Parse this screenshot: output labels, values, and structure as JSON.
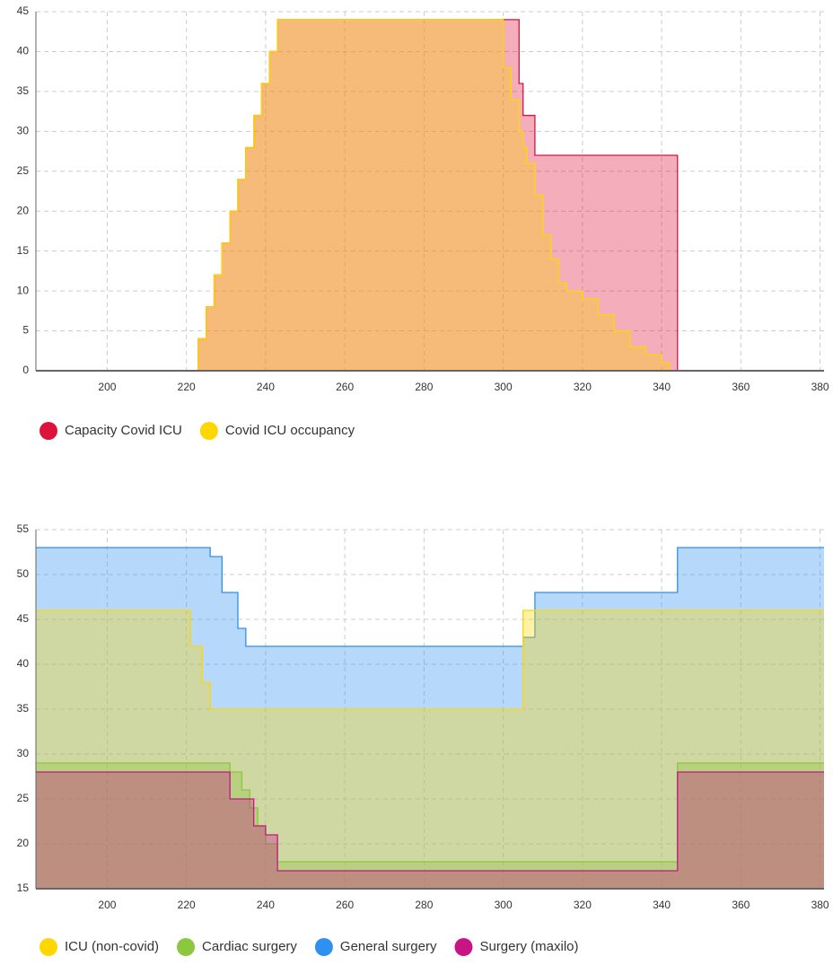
{
  "chart_data": [
    {
      "type": "area",
      "interpolation": "step",
      "grid": true,
      "legend": "bottom-left",
      "xlim": [
        182,
        381
      ],
      "xticks": [
        200,
        220,
        240,
        260,
        280,
        300,
        320,
        340,
        360,
        380
      ],
      "ylim": [
        0,
        45
      ],
      "yticks": [
        0,
        5,
        10,
        15,
        20,
        25,
        30,
        35,
        40,
        45
      ],
      "x": [
        182,
        223,
        225,
        227,
        229,
        231,
        233,
        235,
        237,
        239,
        241,
        243,
        245,
        297,
        300,
        302,
        304,
        305,
        306,
        308,
        310,
        312,
        314,
        316,
        318,
        320,
        324,
        328,
        332,
        336,
        340,
        342,
        344,
        381
      ],
      "series": [
        {
          "name": "Capacity Covid ICU",
          "color": "#dc143c",
          "values": [
            0,
            4,
            8,
            12,
            16,
            20,
            24,
            28,
            32,
            36,
            40,
            44,
            44,
            44,
            44,
            44,
            36,
            32,
            32,
            27,
            27,
            27,
            27,
            27,
            27,
            27,
            27,
            27,
            27,
            27,
            27,
            27,
            0,
            0
          ]
        },
        {
          "name": "Covid ICU occupancy",
          "color": "#ffd700",
          "values": [
            0,
            4,
            8,
            12,
            16,
            20,
            24,
            28,
            32,
            36,
            40,
            44,
            44,
            44,
            38,
            34,
            30,
            28,
            26,
            22,
            17,
            14,
            11,
            10,
            10,
            9,
            7,
            5,
            3,
            2,
            1,
            0,
            0,
            0
          ]
        }
      ]
    },
    {
      "type": "area",
      "interpolation": "step",
      "grid": true,
      "legend": "bottom-left",
      "xlim": [
        182,
        381
      ],
      "xticks": [
        200,
        220,
        240,
        260,
        280,
        300,
        320,
        340,
        360,
        380
      ],
      "ylim": [
        15,
        55
      ],
      "yticks": [
        15,
        20,
        25,
        30,
        35,
        40,
        45,
        50,
        55
      ],
      "x": [
        182,
        221,
        222,
        224,
        226,
        227,
        229,
        231,
        233,
        234,
        235,
        236,
        237,
        238,
        240,
        243,
        304,
        305,
        308,
        344,
        381
      ],
      "series": [
        {
          "name": "ICU (non-covid)",
          "color": "#ffd700",
          "values": [
            46,
            42,
            42,
            38,
            35,
            35,
            35,
            35,
            35,
            35,
            35,
            35,
            35,
            35,
            35,
            35,
            35,
            46,
            46,
            46,
            46
          ]
        },
        {
          "name": "Cardiac surgery",
          "color": "#8dc63f",
          "values": [
            29,
            29,
            29,
            29,
            29,
            29,
            29,
            28,
            28,
            26,
            26,
            24,
            24,
            22,
            20,
            18,
            18,
            18,
            18,
            29,
            29
          ]
        },
        {
          "name": "General surgery",
          "color": "#2e90f0",
          "values": [
            53,
            53,
            53,
            53,
            52,
            52,
            48,
            48,
            44,
            44,
            42,
            42,
            42,
            42,
            42,
            42,
            42,
            43,
            48,
            53,
            53
          ]
        },
        {
          "name": "Surgery (maxilo)",
          "color": "#c71585",
          "values": [
            28,
            28,
            28,
            28,
            28,
            28,
            28,
            25,
            25,
            25,
            25,
            25,
            22,
            22,
            21,
            17,
            17,
            17,
            17,
            28,
            28
          ]
        }
      ]
    }
  ]
}
